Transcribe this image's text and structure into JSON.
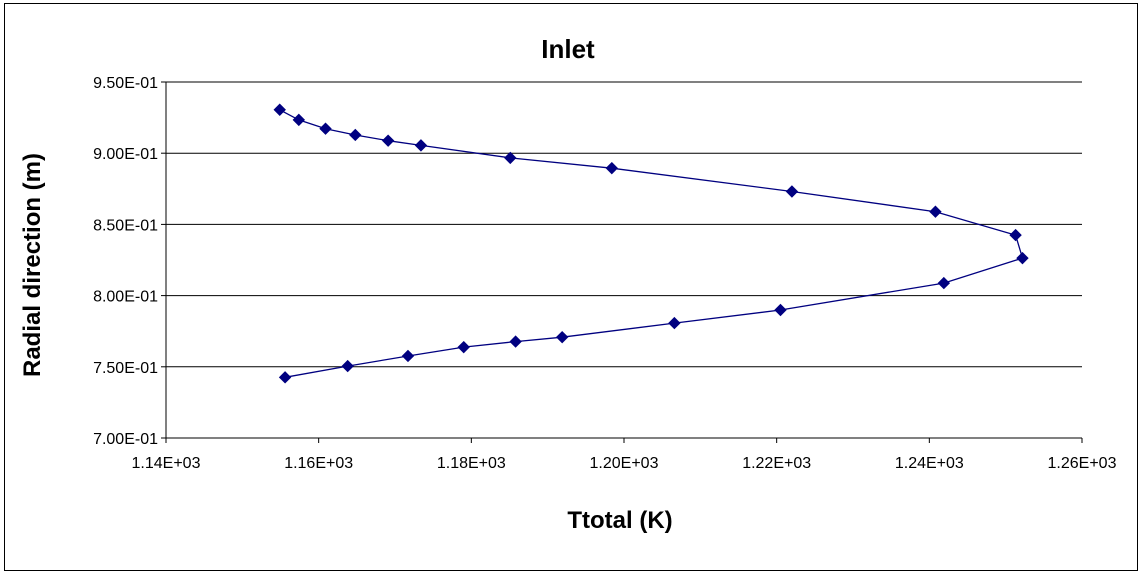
{
  "chart_data": {
    "type": "scatter",
    "title": "Inlet",
    "xlabel": "Ttotal (K)",
    "ylabel": "Radial direction (m)",
    "xlim": [
      1140,
      1260
    ],
    "ylim": [
      0.7,
      0.95
    ],
    "x_ticks": [
      1140,
      1160,
      1180,
      1200,
      1220,
      1240,
      1260
    ],
    "x_tick_labels": [
      "1.14E+03",
      "1.16E+03",
      "1.18E+03",
      "1.20E+03",
      "1.22E+03",
      "1.24E+03",
      "1.26E+03"
    ],
    "y_ticks": [
      0.7,
      0.75,
      0.8,
      0.85,
      0.9,
      0.95
    ],
    "y_tick_labels": [
      "7.00E-01",
      "7.50E-01",
      "8.00E-01",
      "8.50E-01",
      "9.00E-01",
      "9.50E-01"
    ],
    "grid": "horizontal",
    "legend": "none",
    "series": [
      {
        "color": "#000080",
        "marker": "diamond",
        "connected": true,
        "points": [
          [
            1154.9,
            0.9305
          ],
          [
            1157.4,
            0.9234
          ],
          [
            1160.9,
            0.9172
          ],
          [
            1164.8,
            0.9128
          ],
          [
            1169.1,
            0.9088
          ],
          [
            1173.4,
            0.9055
          ],
          [
            1185.1,
            0.8967
          ],
          [
            1198.4,
            0.8895
          ],
          [
            1222.0,
            0.8731
          ],
          [
            1240.8,
            0.8589
          ],
          [
            1251.3,
            0.8425
          ],
          [
            1252.2,
            0.8263
          ],
          [
            1241.9,
            0.8088
          ],
          [
            1220.5,
            0.7899
          ],
          [
            1206.6,
            0.7807
          ],
          [
            1191.9,
            0.7708
          ],
          [
            1185.8,
            0.7677
          ],
          [
            1179.0,
            0.7638
          ],
          [
            1171.7,
            0.7576
          ],
          [
            1163.8,
            0.7505
          ],
          [
            1155.6,
            0.7426
          ]
        ]
      }
    ]
  }
}
